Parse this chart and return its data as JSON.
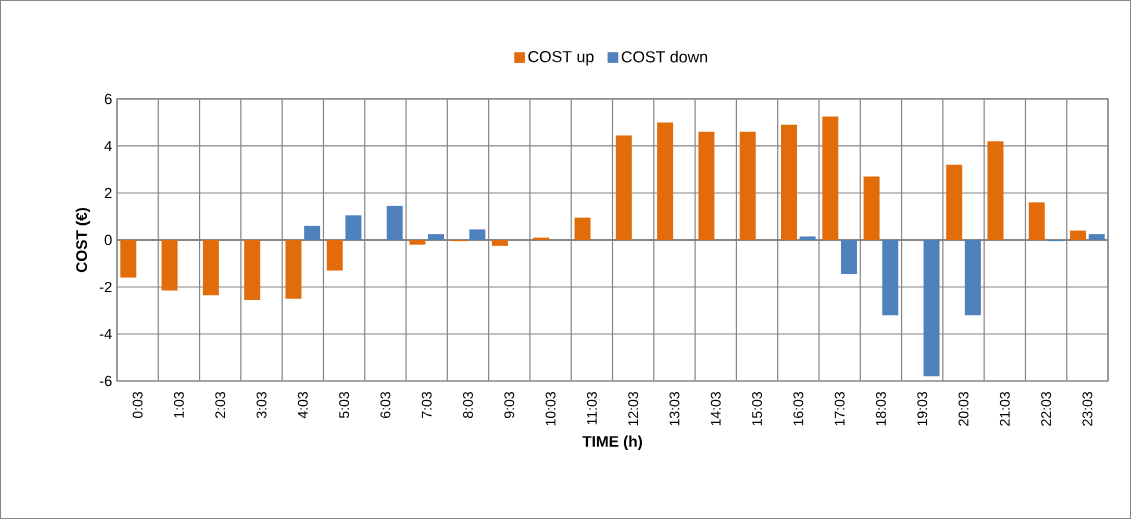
{
  "chart_data": {
    "type": "bar",
    "xlabel": "TIME (h)",
    "ylabel": "COST (€)",
    "categories": [
      "0:03",
      "1:03",
      "2:03",
      "3:03",
      "4:03",
      "5:03",
      "6:03",
      "7:03",
      "8:03",
      "9:03",
      "10:03",
      "11:03",
      "12:03",
      "13:03",
      "14:03",
      "15:03",
      "16:03",
      "17:03",
      "18:03",
      "19:03",
      "20:03",
      "21:03",
      "22:03",
      "23:03"
    ],
    "series": [
      {
        "name": "COST up",
        "color": "#e36c0a",
        "values": [
          -1.6,
          -2.15,
          -2.35,
          -2.55,
          -2.5,
          -1.3,
          null,
          -0.2,
          -0.05,
          -0.25,
          0.1,
          0.95,
          4.45,
          5.0,
          4.6,
          4.6,
          4.9,
          5.25,
          2.7,
          null,
          3.2,
          4.2,
          1.6,
          0.4
        ]
      },
      {
        "name": "COST down",
        "color": "#4f81bd",
        "values": [
          null,
          null,
          null,
          null,
          0.6,
          1.05,
          1.45,
          0.25,
          0.45,
          null,
          null,
          null,
          null,
          null,
          null,
          null,
          0.15,
          -1.45,
          -3.2,
          -5.8,
          -3.2,
          null,
          -0.05,
          0.25
        ]
      }
    ],
    "ylim": [
      -6,
      6
    ],
    "yticks": [
      -6,
      -4,
      -2,
      0,
      2,
      4,
      6
    ],
    "grid": true,
    "legend": "top"
  }
}
